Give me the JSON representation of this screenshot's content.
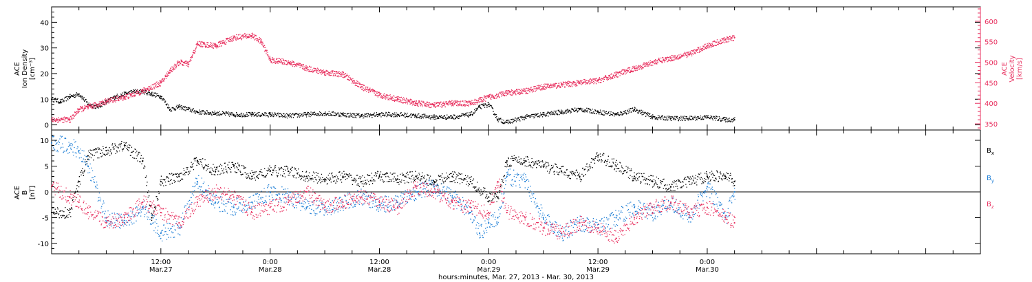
{
  "figure": {
    "xaxis_title": "hours:minutes, Mar. 27, 2013 - Mar. 30, 2013",
    "time_range_hours": [
      0,
      102
    ],
    "x_ticks": [
      {
        "hour": 12,
        "time": "12:00",
        "date": "Mar.27"
      },
      {
        "hour": 24,
        "time": "0:00",
        "date": "Mar.28"
      },
      {
        "hour": 36,
        "time": "12:00",
        "date": "Mar.28"
      },
      {
        "hour": 48,
        "time": "0:00",
        "date": "Mar.29"
      },
      {
        "hour": 60,
        "time": "12:00",
        "date": "Mar.29"
      },
      {
        "hour": 72,
        "time": "0:00",
        "date": "Mar.30"
      }
    ]
  },
  "colors": {
    "density": "#000000",
    "velocity": "#e8305f",
    "bx": "#000000",
    "by": "#1f7fd6",
    "bz": "#e8305f",
    "axis": "#000000"
  },
  "chart_data": [
    {
      "type": "scatter",
      "panel": "top",
      "left_axis": {
        "label_lines": [
          "ACE",
          "Ion Density",
          "[cm⁻³]"
        ],
        "ylim": [
          -2,
          46
        ],
        "ticks": [
          0,
          10,
          20,
          30,
          40
        ]
      },
      "right_axis": {
        "label_lines": [
          "ACE",
          "Velocity",
          "[km/s]"
        ],
        "ylim": [
          335,
          635
        ],
        "ticks": [
          350,
          400,
          450,
          500,
          550,
          600
        ]
      },
      "series": [
        {
          "key": "density",
          "axis": "left",
          "x_hours": [
            0,
            1,
            2,
            3,
            4,
            5,
            6,
            7,
            8,
            9,
            10,
            11,
            12,
            13,
            14,
            15,
            16,
            18,
            20,
            22,
            24,
            26,
            28,
            30,
            32,
            34,
            36,
            38,
            40,
            42,
            44,
            46,
            47,
            48,
            49,
            50,
            52,
            54,
            56,
            58,
            60,
            62,
            64,
            66,
            68,
            70,
            72,
            74,
            75
          ],
          "values": [
            10,
            9,
            11,
            12,
            8,
            7,
            9,
            11,
            12,
            13,
            13,
            12,
            11,
            6,
            7,
            6,
            5,
            4.5,
            4,
            4,
            4,
            3.5,
            4,
            4.5,
            4,
            3.5,
            4,
            4,
            3.5,
            3,
            3,
            4,
            7,
            8,
            2,
            1,
            3,
            4,
            5,
            6,
            5,
            4,
            6,
            3,
            2.5,
            2.5,
            3,
            2,
            2
          ]
        },
        {
          "key": "velocity",
          "axis": "right",
          "x_hours": [
            0,
            2,
            3,
            4,
            6,
            8,
            10,
            12,
            13,
            14,
            15,
            16,
            18,
            20,
            22,
            23,
            24,
            26,
            28,
            30,
            32,
            34,
            36,
            38,
            40,
            42,
            44,
            46,
            48,
            50,
            52,
            54,
            56,
            58,
            60,
            62,
            64,
            66,
            68,
            70,
            72,
            74,
            75
          ],
          "values": [
            360,
            360,
            385,
            390,
            405,
            415,
            430,
            450,
            480,
            500,
            495,
            545,
            540,
            560,
            565,
            550,
            505,
            500,
            485,
            475,
            470,
            440,
            420,
            410,
            400,
            395,
            400,
            400,
            415,
            425,
            430,
            440,
            445,
            450,
            455,
            470,
            485,
            500,
            510,
            520,
            540,
            555,
            560
          ]
        }
      ]
    },
    {
      "type": "scatter",
      "panel": "bottom",
      "left_axis": {
        "label_lines": [
          "ACE",
          "B",
          "[nT]"
        ],
        "ylim": [
          -12,
          12
        ],
        "ticks": [
          -10,
          -5,
          0,
          5,
          10
        ]
      },
      "zero_line": 0,
      "legend": {
        "placement": "right",
        "entries": [
          {
            "key": "bx",
            "base": "B",
            "sub": "x"
          },
          {
            "key": "by",
            "base": "B",
            "sub": "y"
          },
          {
            "key": "bz",
            "base": "B",
            "sub": "z"
          }
        ]
      },
      "series": [
        {
          "key": "bx",
          "x_hours": [
            0,
            2,
            3,
            4,
            6,
            8,
            10,
            11,
            12,
            14,
            16,
            18,
            20,
            22,
            24,
            26,
            28,
            30,
            32,
            34,
            36,
            38,
            40,
            42,
            44,
            46,
            48,
            49,
            50,
            52,
            54,
            56,
            58,
            60,
            62,
            64,
            66,
            68,
            70,
            72,
            74,
            75
          ],
          "values": [
            -4,
            -4,
            2,
            7,
            8,
            9,
            6,
            -5,
            2,
            3,
            6,
            4,
            5,
            3,
            4,
            4,
            3,
            2.5,
            3,
            2,
            3,
            2.5,
            3,
            2,
            3,
            2,
            -1,
            -1,
            6,
            6,
            5,
            4,
            3,
            7,
            5,
            3,
            2,
            1,
            2,
            3,
            3,
            2
          ]
        },
        {
          "key": "by",
          "x_hours": [
            0,
            2,
            3,
            4,
            6,
            8,
            10,
            12,
            14,
            16,
            18,
            20,
            22,
            24,
            26,
            28,
            30,
            32,
            34,
            36,
            38,
            40,
            42,
            44,
            46,
            47,
            48,
            49,
            50,
            52,
            54,
            56,
            58,
            60,
            62,
            64,
            66,
            68,
            70,
            72,
            74,
            75
          ],
          "values": [
            9.5,
            9,
            8,
            5,
            -5,
            -6,
            -3,
            -8,
            -7,
            2,
            -2,
            -3,
            -2,
            0,
            -1,
            -3,
            -3.5,
            -2,
            -1,
            -2.5,
            -2,
            0,
            1,
            -1,
            -4,
            -8,
            -6,
            -5,
            3,
            2,
            -5,
            -8,
            -6,
            -7,
            -5,
            -3,
            -4,
            -2,
            -5,
            1,
            -5,
            0
          ]
        },
        {
          "key": "bz",
          "x_hours": [
            0,
            2,
            3,
            4,
            6,
            8,
            10,
            12,
            14,
            16,
            18,
            20,
            22,
            24,
            26,
            28,
            30,
            32,
            34,
            36,
            38,
            40,
            42,
            44,
            46,
            48,
            49,
            50,
            52,
            54,
            56,
            58,
            60,
            62,
            64,
            66,
            68,
            70,
            72,
            74,
            75
          ],
          "values": [
            1,
            -1,
            -2,
            -4,
            -6,
            -5,
            -2,
            -4,
            -6,
            -2,
            0,
            -1,
            -4,
            -3,
            -2,
            0,
            -3,
            -2,
            -1,
            -2,
            -3,
            1,
            0,
            -2,
            -3,
            -4,
            2,
            -4,
            -5,
            -7,
            -8,
            -6,
            -7,
            -9,
            -5,
            -3,
            -2,
            -4,
            -3,
            -5,
            -6
          ]
        }
      ]
    }
  ]
}
